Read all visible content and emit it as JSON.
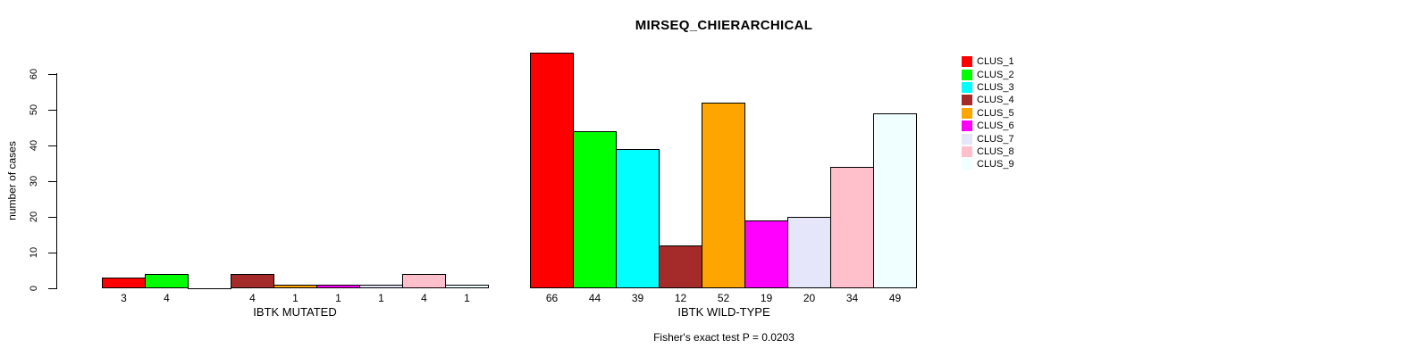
{
  "chart_data": {
    "type": "bar",
    "title": "MIRSEQ_CHIERARCHICAL",
    "ylabel": "number of cases",
    "xlabel": "",
    "ylim": [
      0,
      60
    ],
    "yticks": [
      0,
      10,
      20,
      30,
      40,
      50,
      60
    ],
    "grid": false,
    "legend_position": "right",
    "series_labels": [
      "CLUS_1",
      "CLUS_2",
      "CLUS_3",
      "CLUS_4",
      "CLUS_5",
      "CLUS_6",
      "CLUS_7",
      "CLUS_8",
      "CLUS_9"
    ],
    "colors": [
      "#ff0000",
      "#00ff00",
      "#00ffff",
      "#a52a2a",
      "#ffa500",
      "#ff00ff",
      "#e6e6fa",
      "#ffc0cb",
      "#f0ffff"
    ],
    "groups": [
      {
        "label": "IBTK MUTATED",
        "values": [
          3,
          4,
          0,
          4,
          1,
          1,
          1,
          4,
          1
        ],
        "bar_labels": [
          "3",
          "4",
          "",
          "4",
          "1",
          "1",
          "1",
          "4",
          "1"
        ]
      },
      {
        "label": "IBTK WILD-TYPE",
        "values": [
          66,
          44,
          39,
          12,
          52,
          19,
          20,
          34,
          49
        ],
        "bar_labels": [
          "66",
          "44",
          "39",
          "12",
          "52",
          "19",
          "20",
          "34",
          "49"
        ]
      }
    ],
    "annotation": "Fisher's exact test P = 0.0203"
  }
}
